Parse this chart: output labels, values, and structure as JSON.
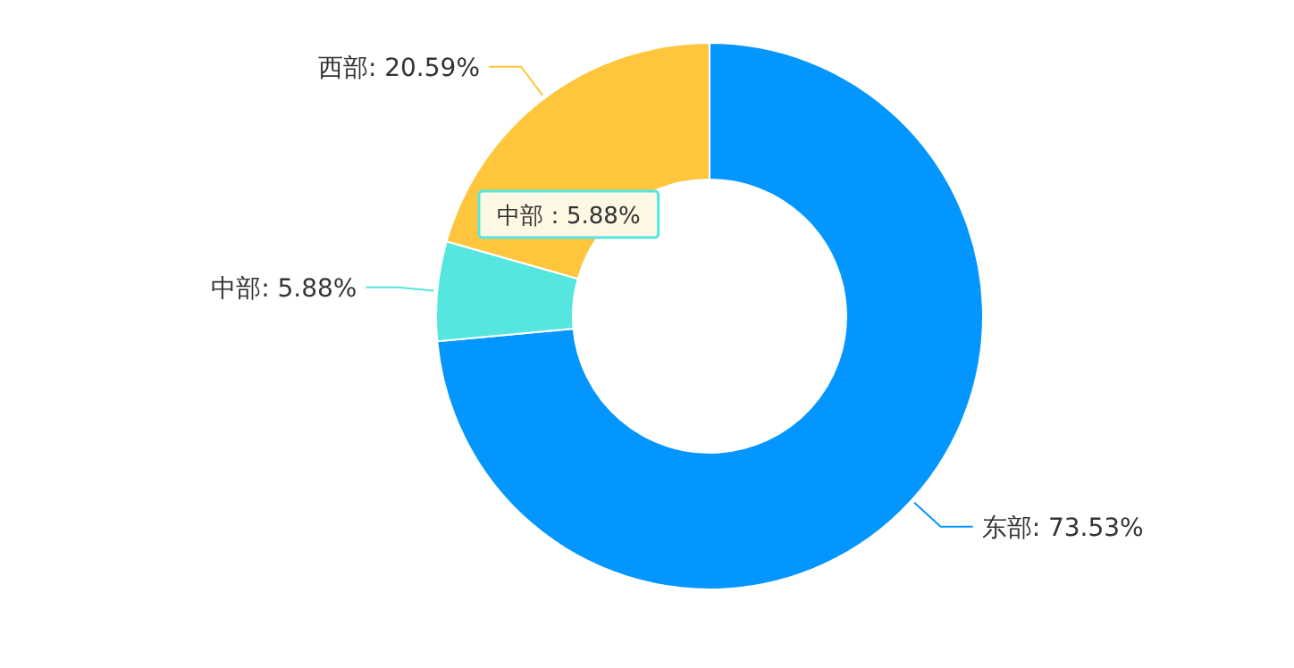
{
  "chart_data": {
    "type": "donut",
    "categories": [
      "东部",
      "中部",
      "西部"
    ],
    "values": [
      73.53,
      5.88,
      20.59
    ],
    "value_labels": [
      "73.53%",
      "5.88%",
      "20.59%"
    ],
    "colors": [
      "#0396ff",
      "#55e6e0",
      "#ffc53d"
    ],
    "annotations": [
      "中部：5.88%"
    ]
  }
}
